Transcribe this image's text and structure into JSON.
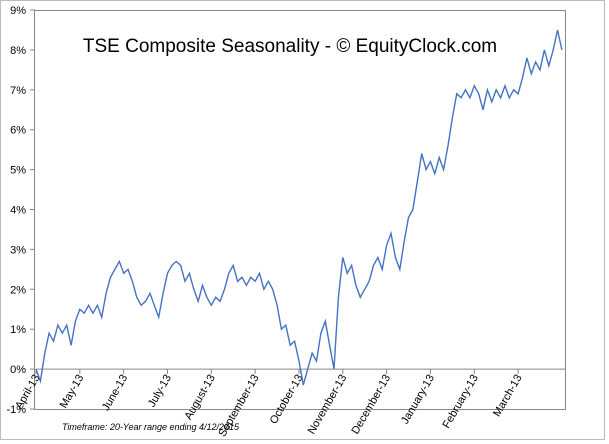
{
  "chart_data": {
    "type": "line",
    "title": "TSE Composite Seasonality - © EquityClock.com",
    "footnote": "Timeframe: 20-Year range ending 4/12/2015",
    "x": [
      0,
      0.1,
      0.2,
      0.3,
      0.4,
      0.5,
      0.6,
      0.7,
      0.8,
      0.9,
      1,
      1.1,
      1.2,
      1.3,
      1.4,
      1.5,
      1.6,
      1.7,
      1.8,
      1.9,
      2,
      2.1,
      2.2,
      2.3,
      2.4,
      2.5,
      2.6,
      2.7,
      2.8,
      2.9,
      3,
      3.1,
      3.2,
      3.3,
      3.4,
      3.5,
      3.6,
      3.7,
      3.8,
      3.9,
      4,
      4.1,
      4.2,
      4.3,
      4.4,
      4.5,
      4.6,
      4.7,
      4.8,
      4.9,
      5,
      5.1,
      5.2,
      5.3,
      5.4,
      5.5,
      5.6,
      5.7,
      5.8,
      5.9,
      6,
      6.1,
      6.2,
      6.3,
      6.4,
      6.5,
      6.6,
      6.7,
      6.8,
      6.9,
      7,
      7.1,
      7.2,
      7.3,
      7.4,
      7.5,
      7.6,
      7.7,
      7.8,
      7.9,
      8,
      8.1,
      8.2,
      8.3,
      8.4,
      8.5,
      8.6,
      8.7,
      8.8,
      8.9,
      9,
      9.1,
      9.2,
      9.3,
      9.4,
      9.5,
      9.6,
      9.7,
      9.8,
      9.9,
      10,
      10.1,
      10.2,
      10.3,
      10.4,
      10.5,
      10.6,
      10.7,
      10.8,
      10.9,
      11,
      11.1,
      11.2,
      11.3,
      11.4,
      11.5,
      11.6,
      11.7,
      11.8,
      11.9,
      12
    ],
    "series": [
      {
        "color": "#4472c4",
        "values": [
          0,
          -0.3,
          0.4,
          0.9,
          0.7,
          1.1,
          0.9,
          1.1,
          0.6,
          1.2,
          1.5,
          1.4,
          1.6,
          1.4,
          1.6,
          1.3,
          1.9,
          2.3,
          2.5,
          2.7,
          2.4,
          2.5,
          2.2,
          1.8,
          1.6,
          1.7,
          1.9,
          1.6,
          1.3,
          1.9,
          2.4,
          2.6,
          2.7,
          2.6,
          2.2,
          2.4,
          2.0,
          1.7,
          2.1,
          1.8,
          1.6,
          1.8,
          1.7,
          2.0,
          2.4,
          2.6,
          2.2,
          2.3,
          2.1,
          2.3,
          2.2,
          2.4,
          2.0,
          2.2,
          2.0,
          1.6,
          1.0,
          1.1,
          0.6,
          0.7,
          0.2,
          -0.4,
          0.0,
          0.4,
          0.2,
          0.9,
          1.2,
          0.6,
          0.0,
          1.8,
          2.8,
          2.4,
          2.6,
          2.1,
          1.8,
          2.0,
          2.2,
          2.6,
          2.8,
          2.5,
          3.1,
          3.4,
          2.8,
          2.5,
          3.2,
          3.8,
          4.0,
          4.7,
          5.4,
          5.0,
          5.2,
          4.9,
          5.3,
          5.0,
          5.6,
          6.3,
          6.9,
          6.8,
          7.0,
          6.8,
          7.1,
          6.9,
          6.5,
          7.0,
          6.7,
          7.0,
          6.8,
          7.1,
          6.8,
          7.0,
          6.9,
          7.3,
          7.8,
          7.4,
          7.7,
          7.5,
          8.0,
          7.6,
          8.0,
          8.5,
          8.0
        ]
      }
    ],
    "xlim": [
      0,
      12.07
    ],
    "xticks": [
      {
        "value": 0,
        "label": "April-13"
      },
      {
        "value": 1,
        "label": "May-13"
      },
      {
        "value": 2,
        "label": "June-13"
      },
      {
        "value": 3,
        "label": "July-13"
      },
      {
        "value": 4,
        "label": "August-13"
      },
      {
        "value": 5,
        "label": "September-13"
      },
      {
        "value": 6,
        "label": "October-13"
      },
      {
        "value": 7,
        "label": "November-13"
      },
      {
        "value": 8,
        "label": "December-13"
      },
      {
        "value": 9,
        "label": "January-13"
      },
      {
        "value": 10,
        "label": "February-13"
      },
      {
        "value": 11,
        "label": "March-13"
      }
    ],
    "ylim": [
      -1,
      9
    ],
    "yticks": [
      {
        "value": -1,
        "label": "-1%"
      },
      {
        "value": 0,
        "label": "0%"
      },
      {
        "value": 1,
        "label": "1%"
      },
      {
        "value": 2,
        "label": "2%"
      },
      {
        "value": 3,
        "label": "3%"
      },
      {
        "value": 4,
        "label": "4%"
      },
      {
        "value": 5,
        "label": "5%"
      },
      {
        "value": 6,
        "label": "6%"
      },
      {
        "value": 7,
        "label": "7%"
      },
      {
        "value": 8,
        "label": "8%"
      },
      {
        "value": 9,
        "label": "9%"
      }
    ],
    "grid": false
  }
}
